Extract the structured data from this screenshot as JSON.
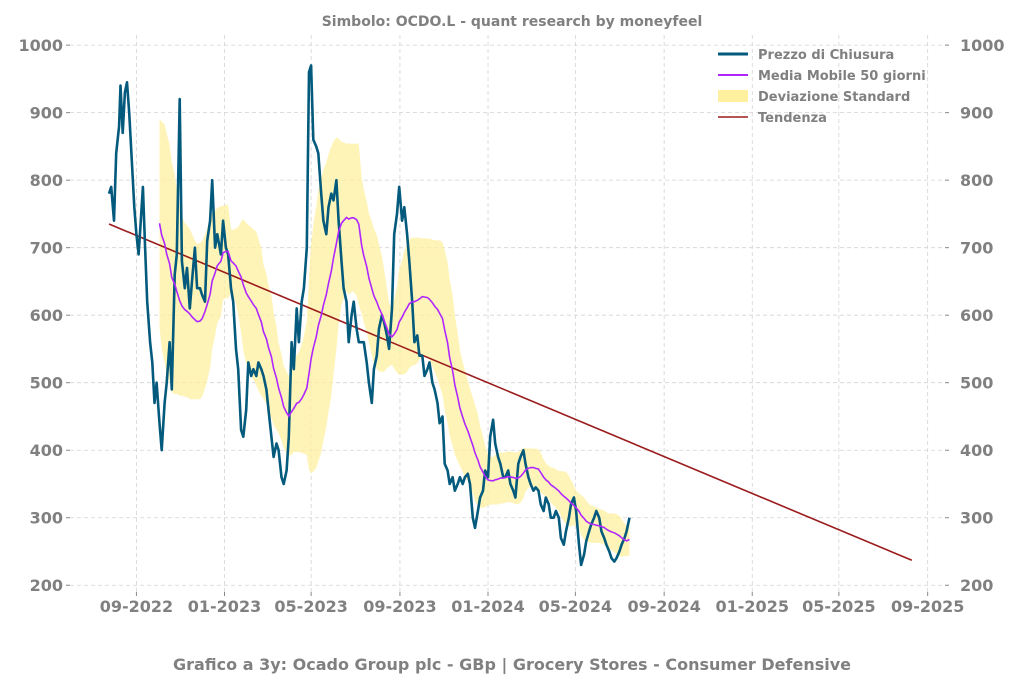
{
  "chart_data": {
    "type": "line",
    "title": "Simbolo: OCDO.L - quant research by moneyfeel",
    "footer": "Grafico a 3y: Ocado Group plc - GBp | Grocery Stores - Consumer Defensive",
    "y_ticks": [
      200,
      300,
      400,
      500,
      600,
      700,
      800,
      900,
      1000
    ],
    "x_ticks": [
      "09-2022",
      "01-2023",
      "05-2023",
      "09-2023",
      "01-2024",
      "05-2024",
      "09-2024",
      "01-2025",
      "05-2025",
      "09-2025"
    ],
    "ylim": [
      190,
      1015
    ],
    "grid": true,
    "legend_position": "top-right",
    "legend": [
      {
        "key": "close",
        "label": "Prezzo di Chiusura"
      },
      {
        "key": "ma50",
        "label": "Media Mobile 50 giorni"
      },
      {
        "key": "std",
        "label": "Deviazione Standard"
      },
      {
        "key": "trend",
        "label": "Tendenza"
      }
    ],
    "colors": {
      "close": "#035a7c",
      "ma50": "#b026ff",
      "std": "#fff0a0",
      "trend": "#9b1c1c",
      "grid": "#d3d3d3",
      "text": "#808080"
    },
    "close_series": [
      [
        "2022-07-25",
        780
      ],
      [
        "2022-07-28",
        790
      ],
      [
        "2022-08-01",
        740
      ],
      [
        "2022-08-04",
        840
      ],
      [
        "2022-08-08",
        880
      ],
      [
        "2022-08-10",
        940
      ],
      [
        "2022-08-13",
        870
      ],
      [
        "2022-08-16",
        930
      ],
      [
        "2022-08-19",
        945
      ],
      [
        "2022-08-22",
        900
      ],
      [
        "2022-08-25",
        840
      ],
      [
        "2022-08-29",
        760
      ],
      [
        "2022-09-01",
        720
      ],
      [
        "2022-09-04",
        690
      ],
      [
        "2022-09-07",
        740
      ],
      [
        "2022-09-10",
        790
      ],
      [
        "2022-09-13",
        700
      ],
      [
        "2022-09-16",
        620
      ],
      [
        "2022-09-20",
        560
      ],
      [
        "2022-09-23",
        530
      ],
      [
        "2022-09-26",
        470
      ],
      [
        "2022-09-29",
        500
      ],
      [
        "2022-10-03",
        440
      ],
      [
        "2022-10-06",
        400
      ],
      [
        "2022-10-10",
        470
      ],
      [
        "2022-10-13",
        500
      ],
      [
        "2022-10-17",
        560
      ],
      [
        "2022-10-20",
        490
      ],
      [
        "2022-10-24",
        660
      ],
      [
        "2022-10-27",
        690
      ],
      [
        "2022-10-31",
        920
      ],
      [
        "2022-11-03",
        680
      ],
      [
        "2022-11-07",
        640
      ],
      [
        "2022-11-10",
        670
      ],
      [
        "2022-11-14",
        610
      ],
      [
        "2022-11-17",
        650
      ],
      [
        "2022-11-21",
        700
      ],
      [
        "2022-11-24",
        640
      ],
      [
        "2022-11-28",
        640
      ],
      [
        "2022-12-01",
        630
      ],
      [
        "2022-12-05",
        620
      ],
      [
        "2022-12-08",
        710
      ],
      [
        "2022-12-12",
        740
      ],
      [
        "2022-12-15",
        800
      ],
      [
        "2022-12-19",
        700
      ],
      [
        "2022-12-22",
        720
      ],
      [
        "2022-12-27",
        690
      ],
      [
        "2022-12-30",
        740
      ],
      [
        "2023-01-03",
        700
      ],
      [
        "2023-01-06",
        690
      ],
      [
        "2023-01-10",
        640
      ],
      [
        "2023-01-13",
        620
      ],
      [
        "2023-01-17",
        550
      ],
      [
        "2023-01-20",
        520
      ],
      [
        "2023-01-24",
        430
      ],
      [
        "2023-01-27",
        420
      ],
      [
        "2023-01-31",
        460
      ],
      [
        "2023-02-03",
        530
      ],
      [
        "2023-02-07",
        510
      ],
      [
        "2023-02-10",
        520
      ],
      [
        "2023-02-14",
        510
      ],
      [
        "2023-02-17",
        530
      ],
      [
        "2023-02-21",
        520
      ],
      [
        "2023-02-24",
        510
      ],
      [
        "2023-02-28",
        490
      ],
      [
        "2023-03-03",
        460
      ],
      [
        "2023-03-07",
        420
      ],
      [
        "2023-03-10",
        390
      ],
      [
        "2023-03-14",
        410
      ],
      [
        "2023-03-17",
        400
      ],
      [
        "2023-03-21",
        360
      ],
      [
        "2023-03-24",
        350
      ],
      [
        "2023-03-28",
        370
      ],
      [
        "2023-03-31",
        420
      ],
      [
        "2023-04-04",
        560
      ],
      [
        "2023-04-07",
        520
      ],
      [
        "2023-04-11",
        610
      ],
      [
        "2023-04-14",
        560
      ],
      [
        "2023-04-18",
        620
      ],
      [
        "2023-04-21",
        640
      ],
      [
        "2023-04-25",
        700
      ],
      [
        "2023-04-28",
        960
      ],
      [
        "2023-05-01",
        970
      ],
      [
        "2023-05-04",
        860
      ],
      [
        "2023-05-08",
        850
      ],
      [
        "2023-05-11",
        840
      ],
      [
        "2023-05-15",
        780
      ],
      [
        "2023-05-18",
        740
      ],
      [
        "2023-05-22",
        720
      ],
      [
        "2023-05-25",
        760
      ],
      [
        "2023-05-29",
        780
      ],
      [
        "2023-06-01",
        770
      ],
      [
        "2023-06-05",
        800
      ],
      [
        "2023-06-08",
        740
      ],
      [
        "2023-06-12",
        680
      ],
      [
        "2023-06-15",
        640
      ],
      [
        "2023-06-19",
        620
      ],
      [
        "2023-06-22",
        560
      ],
      [
        "2023-06-26",
        600
      ],
      [
        "2023-06-29",
        620
      ],
      [
        "2023-07-03",
        580
      ],
      [
        "2023-07-06",
        560
      ],
      [
        "2023-07-10",
        560
      ],
      [
        "2023-07-13",
        560
      ],
      [
        "2023-07-17",
        530
      ],
      [
        "2023-07-20",
        500
      ],
      [
        "2023-07-24",
        470
      ],
      [
        "2023-07-27",
        520
      ],
      [
        "2023-07-31",
        540
      ],
      [
        "2023-08-03",
        580
      ],
      [
        "2023-08-07",
        600
      ],
      [
        "2023-08-10",
        590
      ],
      [
        "2023-08-14",
        570
      ],
      [
        "2023-08-17",
        550
      ],
      [
        "2023-08-21",
        610
      ],
      [
        "2023-08-24",
        720
      ],
      [
        "2023-08-28",
        750
      ],
      [
        "2023-08-31",
        790
      ],
      [
        "2023-09-04",
        740
      ],
      [
        "2023-09-07",
        760
      ],
      [
        "2023-09-11",
        720
      ],
      [
        "2023-09-14",
        680
      ],
      [
        "2023-09-18",
        620
      ],
      [
        "2023-09-21",
        560
      ],
      [
        "2023-09-25",
        570
      ],
      [
        "2023-09-28",
        540
      ],
      [
        "2023-10-02",
        540
      ],
      [
        "2023-10-05",
        510
      ],
      [
        "2023-10-09",
        520
      ],
      [
        "2023-10-12",
        530
      ],
      [
        "2023-10-16",
        500
      ],
      [
        "2023-10-19",
        490
      ],
      [
        "2023-10-23",
        470
      ],
      [
        "2023-10-26",
        440
      ],
      [
        "2023-10-30",
        450
      ],
      [
        "2023-11-02",
        380
      ],
      [
        "2023-11-06",
        370
      ],
      [
        "2023-11-09",
        350
      ],
      [
        "2023-11-13",
        360
      ],
      [
        "2023-11-16",
        340
      ],
      [
        "2023-11-20",
        350
      ],
      [
        "2023-11-23",
        360
      ],
      [
        "2023-11-27",
        350
      ],
      [
        "2023-11-30",
        360
      ],
      [
        "2023-12-04",
        365
      ],
      [
        "2023-12-07",
        350
      ],
      [
        "2023-12-11",
        300
      ],
      [
        "2023-12-14",
        285
      ],
      [
        "2023-12-18",
        310
      ],
      [
        "2023-12-21",
        330
      ],
      [
        "2023-12-25",
        340
      ],
      [
        "2023-12-28",
        370
      ],
      [
        "2024-01-01",
        360
      ],
      [
        "2024-01-04",
        420
      ],
      [
        "2024-01-08",
        445
      ],
      [
        "2024-01-11",
        410
      ],
      [
        "2024-01-15",
        390
      ],
      [
        "2024-01-18",
        380
      ],
      [
        "2024-01-22",
        360
      ],
      [
        "2024-01-25",
        360
      ],
      [
        "2024-01-29",
        370
      ],
      [
        "2024-02-01",
        350
      ],
      [
        "2024-02-05",
        340
      ],
      [
        "2024-02-08",
        330
      ],
      [
        "2024-02-12",
        380
      ],
      [
        "2024-02-15",
        390
      ],
      [
        "2024-02-19",
        400
      ],
      [
        "2024-02-22",
        380
      ],
      [
        "2024-02-26",
        360
      ],
      [
        "2024-02-29",
        350
      ],
      [
        "2024-03-04",
        340
      ],
      [
        "2024-03-07",
        345
      ],
      [
        "2024-03-11",
        340
      ],
      [
        "2024-03-14",
        320
      ],
      [
        "2024-03-18",
        310
      ],
      [
        "2024-03-21",
        330
      ],
      [
        "2024-03-25",
        320
      ],
      [
        "2024-03-28",
        300
      ],
      [
        "2024-04-01",
        300
      ],
      [
        "2024-04-04",
        310
      ],
      [
        "2024-04-08",
        300
      ],
      [
        "2024-04-11",
        270
      ],
      [
        "2024-04-15",
        260
      ],
      [
        "2024-04-18",
        280
      ],
      [
        "2024-04-22",
        300
      ],
      [
        "2024-04-25",
        320
      ],
      [
        "2024-04-29",
        330
      ],
      [
        "2024-05-02",
        310
      ],
      [
        "2024-05-06",
        260
      ],
      [
        "2024-05-09",
        230
      ],
      [
        "2024-05-13",
        245
      ],
      [
        "2024-05-16",
        265
      ],
      [
        "2024-05-20",
        280
      ],
      [
        "2024-05-23",
        290
      ],
      [
        "2024-05-27",
        300
      ],
      [
        "2024-05-30",
        310
      ],
      [
        "2024-06-03",
        300
      ],
      [
        "2024-06-06",
        280
      ],
      [
        "2024-06-10",
        270
      ],
      [
        "2024-06-13",
        260
      ],
      [
        "2024-06-17",
        250
      ],
      [
        "2024-06-20",
        240
      ],
      [
        "2024-06-24",
        235
      ],
      [
        "2024-06-27",
        240
      ],
      [
        "2024-07-01",
        250
      ],
      [
        "2024-07-04",
        260
      ],
      [
        "2024-07-08",
        270
      ],
      [
        "2024-07-11",
        280
      ],
      [
        "2024-07-15",
        300
      ]
    ],
    "trend_line": [
      [
        "2022-07-25",
        735
      ],
      [
        "2025-08-10",
        237
      ]
    ]
  }
}
